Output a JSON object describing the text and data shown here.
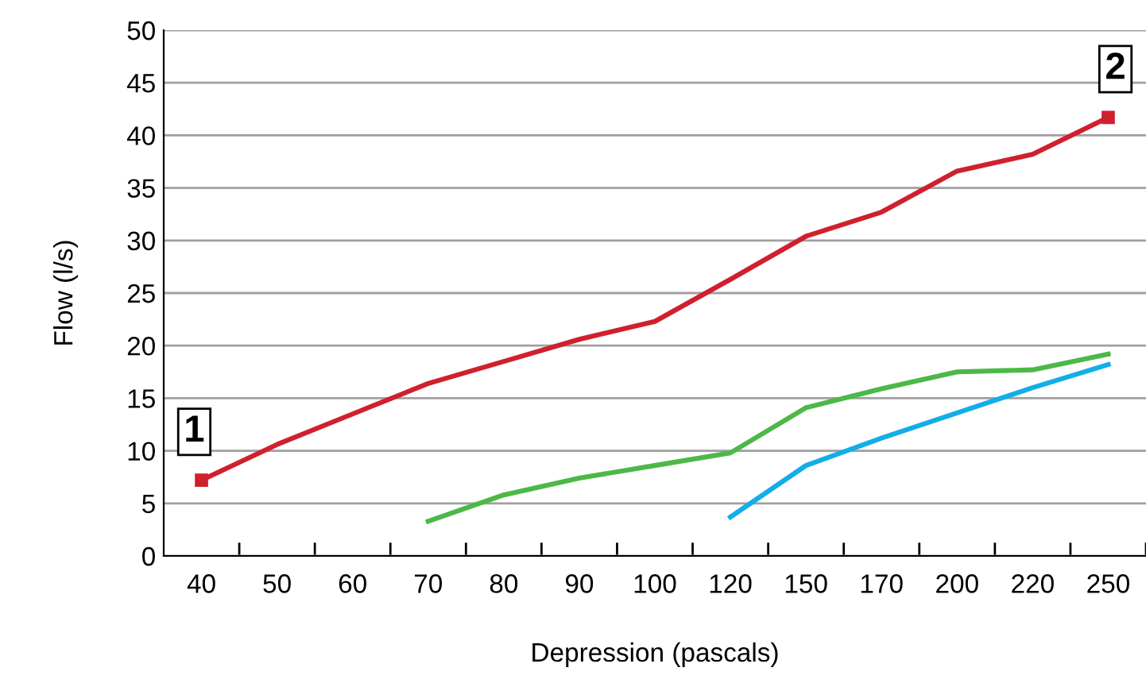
{
  "chart_data": {
    "type": "line",
    "xlabel": "Depression (pascals)",
    "ylabel": "Flow (l/s)",
    "categories": [
      "40",
      "50",
      "60",
      "70",
      "80",
      "90",
      "100",
      "120",
      "150",
      "170",
      "200",
      "220",
      "250"
    ],
    "series": [
      {
        "color": "#d0202e",
        "values": [
          7.2,
          10.6,
          13.5,
          16.4,
          18.5,
          20.6,
          22.3,
          26.3,
          30.4,
          32.7,
          36.6,
          38.2,
          41.7
        ]
      },
      {
        "color": "#4cb848",
        "values": [
          null,
          null,
          null,
          3.3,
          5.8,
          7.4,
          8.6,
          9.8,
          14.1,
          15.9,
          17.5,
          17.7,
          19.2
        ]
      },
      {
        "color": "#12aee8",
        "values": [
          null,
          null,
          null,
          null,
          null,
          null,
          null,
          3.7,
          8.6,
          11.2,
          13.6,
          16.0,
          18.2
        ]
      }
    ],
    "ylim": [
      0,
      50
    ],
    "yticks": [
      0,
      5,
      10,
      15,
      20,
      25,
      30,
      35,
      40,
      45,
      50
    ],
    "grid": "y",
    "line_style": "solid",
    "annotations": [
      {
        "text": "1",
        "x": "40",
        "y": 7.2
      },
      {
        "text": "2",
        "x": "250",
        "y": 41.7
      }
    ]
  }
}
